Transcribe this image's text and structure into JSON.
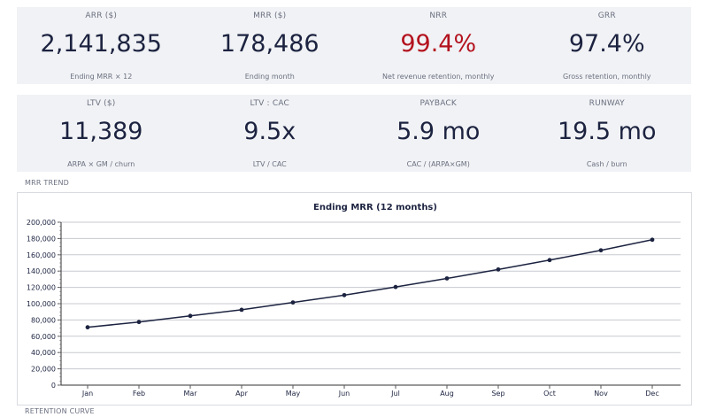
{
  "kpis_row1": [
    {
      "label": "ARR ($)",
      "value": "2,141,835",
      "sub": "Ending MRR × 12"
    },
    {
      "label": "MRR ($)",
      "value": "178,486",
      "sub": "Ending month"
    },
    {
      "label": "NRR",
      "value": "99.4%",
      "sub": "Net revenue retention, monthly"
    },
    {
      "label": "GRR",
      "value": "97.4%",
      "sub": "Gross retention, monthly"
    }
  ],
  "kpis_row2": [
    {
      "label": "LTV ($)",
      "value": "11,389",
      "sub": "ARPA × GM / churn"
    },
    {
      "label": "LTV : CAC",
      "value": "9.5x",
      "sub": "LTV / CAC"
    },
    {
      "label": "PAYBACK",
      "value": "5.9 mo",
      "sub": "CAC / (ARPA×GM)"
    },
    {
      "label": "RUNWAY",
      "value": "19.5 mo",
      "sub": "Cash / burn"
    }
  ],
  "colors": {
    "accent_warning": "#b3121e",
    "line": "#1c2340",
    "card_bg": "#f1f2f5"
  },
  "sections": {
    "mrr_trend": "MRR TREND",
    "retention_curve": "RETENTION CURVE"
  },
  "chart_data": {
    "type": "line",
    "title": "Ending MRR (12 months)",
    "categories": [
      "Jan",
      "Feb",
      "Mar",
      "Apr",
      "May",
      "Jun",
      "Jul",
      "Aug",
      "Sep",
      "Oct",
      "Nov",
      "Dec"
    ],
    "values": [
      71000,
      77500,
      85000,
      92500,
      101500,
      110500,
      120500,
      131000,
      142000,
      153500,
      165500,
      178486
    ],
    "ylim": [
      0,
      200000
    ],
    "yticks": [
      0,
      20000,
      40000,
      60000,
      80000,
      100000,
      120000,
      140000,
      160000,
      180000,
      200000
    ],
    "ytick_labels": [
      "0",
      "20,000",
      "40,000",
      "60,000",
      "80,000",
      "100,000",
      "120,000",
      "140,000",
      "160,000",
      "180,000",
      "200,000"
    ],
    "xlabel": "",
    "ylabel": "",
    "grid": true
  }
}
